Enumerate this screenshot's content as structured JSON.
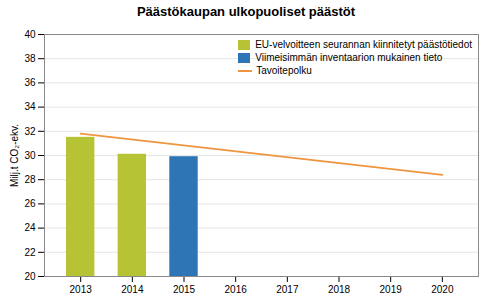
{
  "chart_data": {
    "type": "bar",
    "title": "Päästökaupan ulkopuoliset päästöt",
    "ylabel": "Milj.t CO₂-ekv.",
    "xlim": [
      2012.3,
      2020.7
    ],
    "xticks": [
      2013,
      2014,
      2015,
      2016,
      2017,
      2018,
      2019,
      2020
    ],
    "ylim": [
      20,
      40
    ],
    "yticks": [
      20,
      22,
      24,
      26,
      28,
      30,
      32,
      34,
      36,
      38,
      40
    ],
    "grid": "y",
    "legend": "upper right",
    "series": [
      {
        "name": "EU-velvoitteen seurannan kiinnitetyt päästötiedot",
        "color": "#b5c334",
        "x": [
          2013,
          2014
        ],
        "values": [
          31.5,
          30.1
        ]
      },
      {
        "name": "Viimeisimmän inventaarion mukainen tieto",
        "color": "#2e75b6",
        "x": [
          2015
        ],
        "values": [
          29.9
        ]
      },
      {
        "name": "Tavoitepolku",
        "type": "line",
        "color": "#f0953f",
        "x": [
          2013,
          2020
        ],
        "values": [
          31.8,
          28.4
        ]
      }
    ]
  }
}
